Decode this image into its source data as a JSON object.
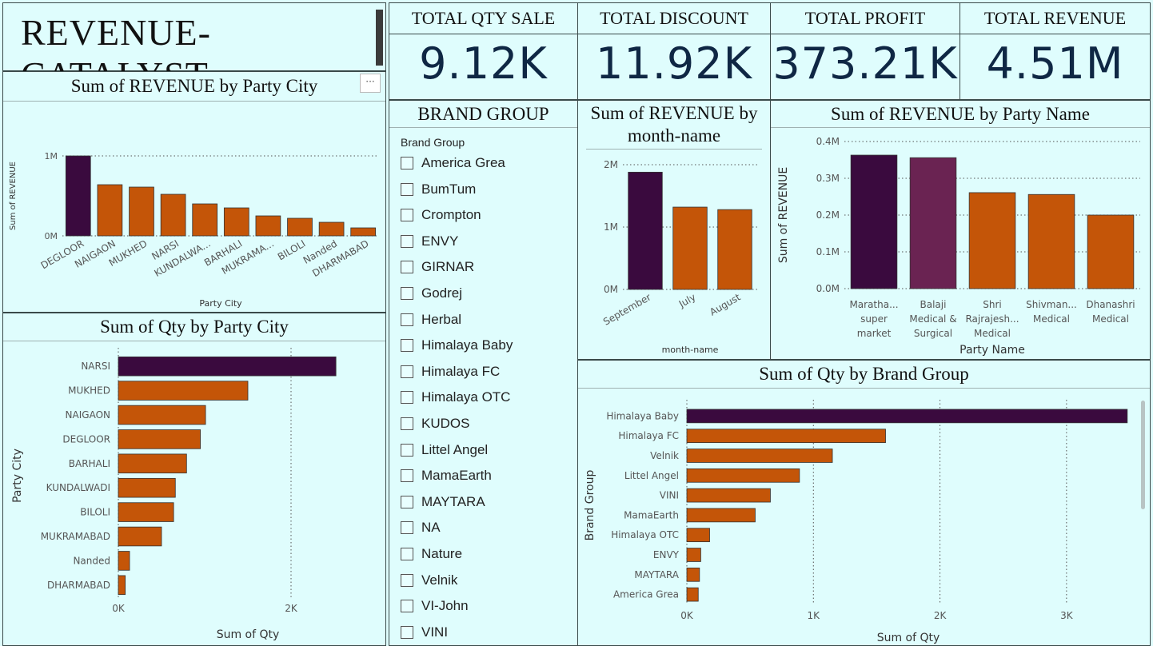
{
  "title": "REVENUE-CATALYST",
  "kpis": [
    {
      "label": "TOTAL QTY SALE",
      "value": "9.12K"
    },
    {
      "label": "TOTAL DISCOUNT",
      "value": "11.92K"
    },
    {
      "label": "TOTAL PROFIT",
      "value": "373.21K"
    },
    {
      "label": "TOTAL REVENUE",
      "value": "4.51M"
    }
  ],
  "colors": {
    "highlight": "#3a0a3e",
    "highlight2": "#6a2352",
    "bar": "#c45508",
    "grid": "#555555"
  },
  "more_options_icon": "ellipsis-icon",
  "slicer": {
    "title": "BRAND GROUP",
    "field_label": "Brand Group",
    "items": [
      "America Grea",
      "BumTum",
      "Crompton",
      "ENVY",
      "GIRNAR",
      "Godrej",
      "Herbal",
      "Himalaya Baby",
      "Himalaya FC",
      "Himalaya OTC",
      "KUDOS",
      "Littel Angel",
      "MamaEarth",
      "MAYTARA",
      "NA",
      "Nature",
      "Velnik",
      "VI-John",
      "VINI"
    ]
  },
  "chart_data": [
    {
      "id": "rev_city",
      "type": "bar",
      "title": "Sum of REVENUE by Party City",
      "xlabel": "Party City",
      "ylabel": "Sum of REVENUE",
      "categories": [
        "DEGLOOR",
        "NAIGAON",
        "MUKHED",
        "NARSI",
        "KUNDALWA...",
        "BARHALI",
        "MUKRAMA...",
        "BILOLI",
        "Nanded",
        "DHARMABAD"
      ],
      "values": [
        1000000,
        640000,
        610000,
        520000,
        400000,
        350000,
        250000,
        220000,
        170000,
        100000
      ],
      "ylim": [
        0,
        1000000
      ],
      "yticks": [
        {
          "v": 0,
          "label": "0M"
        },
        {
          "v": 1000000,
          "label": "1M"
        }
      ],
      "highlight": [
        0
      ]
    },
    {
      "id": "qty_city",
      "type": "bar",
      "orientation": "horizontal",
      "title": "Sum of Qty by Party City",
      "xlabel": "Sum of Qty",
      "ylabel": "Party City",
      "categories": [
        "NARSI",
        "MUKHED",
        "NAIGAON",
        "DEGLOOR",
        "BARHALI",
        "KUNDALWADI",
        "BILOLI",
        "MUKRAMABAD",
        "Nanded",
        "DHARMABAD"
      ],
      "values": [
        2520,
        1500,
        1010,
        950,
        790,
        660,
        640,
        500,
        130,
        80
      ],
      "xlim": [
        0,
        3000
      ],
      "xticks": [
        {
          "v": 0,
          "label": "0K"
        },
        {
          "v": 2000,
          "label": "2K"
        }
      ],
      "highlight": [
        0
      ]
    },
    {
      "id": "rev_month",
      "type": "bar",
      "title": "Sum of REVENUE by month-name",
      "xlabel": "month-name",
      "ylabel": "",
      "categories": [
        "September",
        "July",
        "August"
      ],
      "values": [
        1880000,
        1320000,
        1280000
      ],
      "ylim": [
        0,
        2000000
      ],
      "yticks": [
        {
          "v": 0,
          "label": "0M"
        },
        {
          "v": 1000000,
          "label": "1M"
        },
        {
          "v": 2000000,
          "label": "2M"
        }
      ],
      "highlight": [
        0
      ]
    },
    {
      "id": "rev_party",
      "type": "bar",
      "title": "Sum of REVENUE by Party Name",
      "xlabel": "Party Name",
      "ylabel": "Sum of REVENUE",
      "categories": [
        [
          "Maratha...",
          "super",
          "market"
        ],
        [
          "Balaji",
          "Medical &",
          "Surgical"
        ],
        [
          "Shri",
          "Rajrajesh...",
          "Medical"
        ],
        [
          "Shivman...",
          "Medical"
        ],
        [
          "Dhanashri",
          "Medical"
        ]
      ],
      "values": [
        363000,
        356000,
        261000,
        256000,
        200000
      ],
      "ylim": [
        0,
        400000
      ],
      "yticks": [
        {
          "v": 0,
          "label": "0.0M"
        },
        {
          "v": 100000,
          "label": "0.1M"
        },
        {
          "v": 200000,
          "label": "0.2M"
        },
        {
          "v": 300000,
          "label": "0.3M"
        },
        {
          "v": 400000,
          "label": "0.4M"
        }
      ],
      "highlight": [
        0,
        1
      ]
    },
    {
      "id": "qty_brand",
      "type": "bar",
      "orientation": "horizontal",
      "title": "Sum of Qty by Brand Group",
      "xlabel": "Sum of Qty",
      "ylabel": "Brand Group",
      "categories": [
        "Himalaya Baby",
        "Himalaya FC",
        "Velnik",
        "Littel Angel",
        "VINI",
        "MamaEarth",
        "Himalaya OTC",
        "ENVY",
        "MAYTARA",
        "America Grea"
      ],
      "values": [
        3480,
        1570,
        1150,
        890,
        660,
        540,
        180,
        110,
        100,
        90
      ],
      "xlim": [
        0,
        3500
      ],
      "xticks": [
        {
          "v": 0,
          "label": "0K"
        },
        {
          "v": 1000,
          "label": "1K"
        },
        {
          "v": 2000,
          "label": "2K"
        },
        {
          "v": 3000,
          "label": "3K"
        }
      ],
      "highlight": [
        0
      ]
    }
  ]
}
